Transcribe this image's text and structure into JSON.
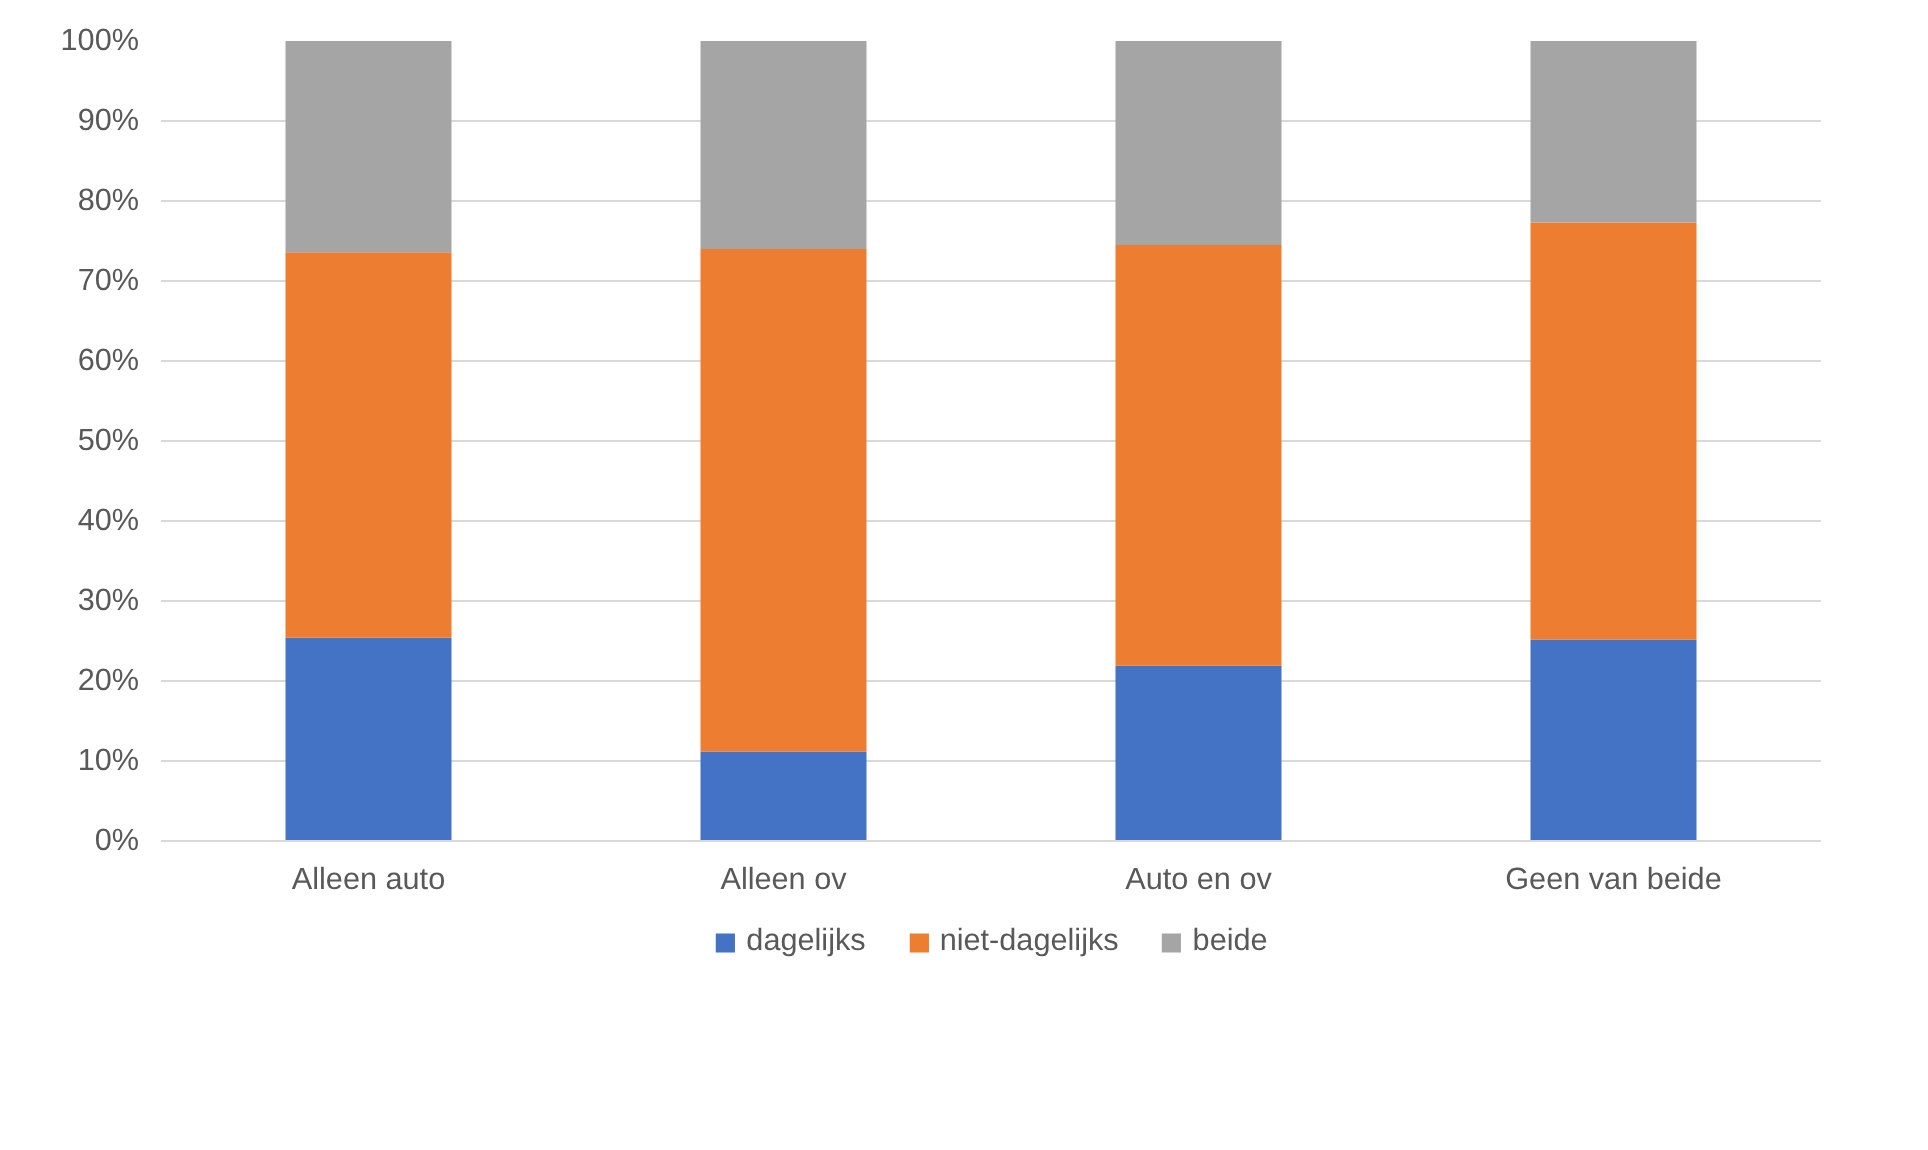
{
  "chart_data": {
    "type": "bar",
    "stacked": true,
    "categories": [
      "Alleen auto",
      "Alleen ov",
      "Auto en ov",
      "Geen van beide"
    ],
    "series": [
      {
        "name": "dagelijks",
        "color": "#4472c4",
        "values": [
          25.4,
          11.2,
          21.9,
          25.2
        ]
      },
      {
        "name": "niet-dagelijks",
        "color": "#ed7d31",
        "values": [
          48.2,
          62.8,
          52.6,
          52.1
        ]
      },
      {
        "name": "beide",
        "color": "#a5a5a5",
        "values": [
          26.4,
          26.0,
          25.5,
          22.7
        ]
      }
    ],
    "ylim": [
      0,
      100
    ],
    "yticks": [
      {
        "value": 0,
        "label": "0%"
      },
      {
        "value": 10,
        "label": "10%"
      },
      {
        "value": 20,
        "label": "20%"
      },
      {
        "value": 30,
        "label": "30%"
      },
      {
        "value": 40,
        "label": "40%"
      },
      {
        "value": 50,
        "label": "50%"
      },
      {
        "value": 60,
        "label": "60%"
      },
      {
        "value": 70,
        "label": "70%"
      },
      {
        "value": 80,
        "label": "80%"
      },
      {
        "value": 90,
        "label": "90%"
      },
      {
        "value": 100,
        "label": "100%"
      }
    ],
    "grid": "y",
    "legend": "bottom"
  }
}
